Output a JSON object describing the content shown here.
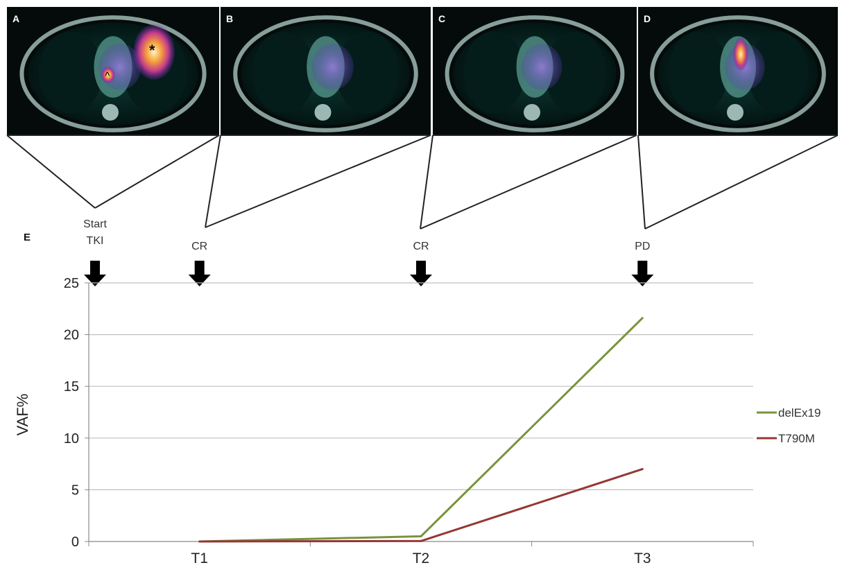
{
  "panels": [
    {
      "label": "A",
      "markers": [
        "*",
        "^"
      ]
    },
    {
      "label": "B",
      "markers": []
    },
    {
      "label": "C",
      "markers": []
    },
    {
      "label": "D",
      "markers": []
    }
  ],
  "panel_E_label": "E",
  "timeline_events": [
    {
      "lines": [
        "Start",
        "TKI"
      ]
    },
    {
      "lines": [
        "CR"
      ]
    },
    {
      "lines": [
        "CR"
      ]
    },
    {
      "lines": [
        "PD"
      ]
    }
  ],
  "colors": {
    "delEx19": "#77933c",
    "T790M": "#953735",
    "grid": "#bfbfbf",
    "arrow": "#000000"
  },
  "chart_data": {
    "type": "line",
    "categories": [
      "T1",
      "T2",
      "T3"
    ],
    "series": [
      {
        "name": "delEx19",
        "values": [
          0,
          0.5,
          21.6
        ]
      },
      {
        "name": "T790M",
        "values": [
          0,
          0.05,
          7.0
        ]
      }
    ],
    "xlabel": "",
    "ylabel": "VAF%",
    "ylim": [
      0,
      25
    ],
    "yticks": [
      0,
      5,
      10,
      15,
      20,
      25
    ],
    "grid": true,
    "legend": "right"
  }
}
